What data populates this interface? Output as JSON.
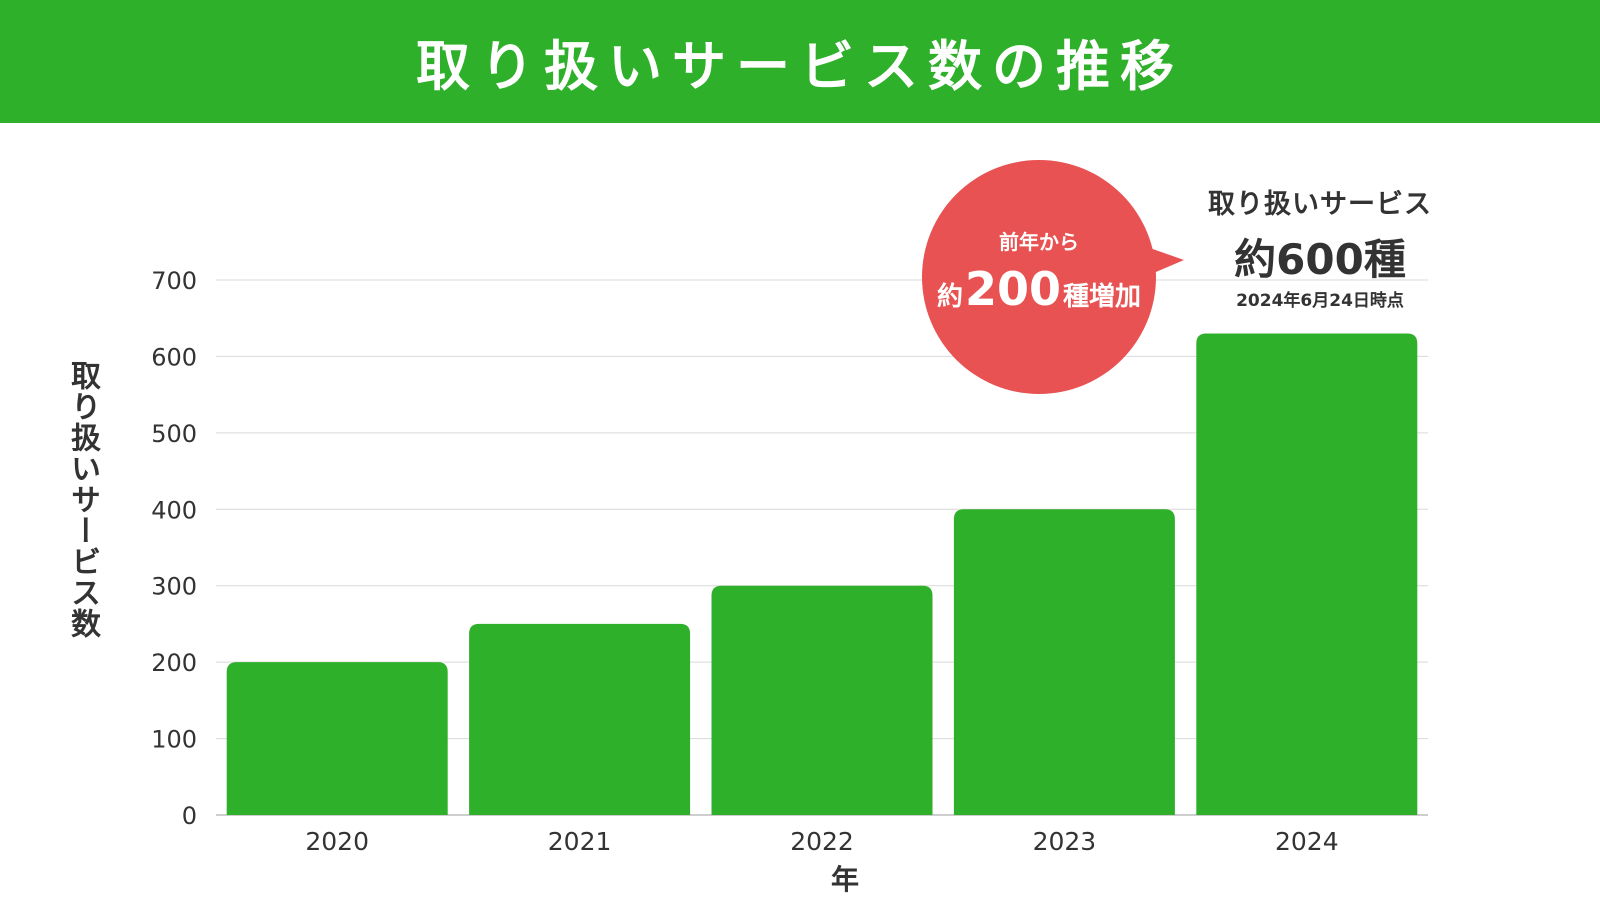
{
  "header": {
    "title": "取り扱いサービス数の推移"
  },
  "colors": {
    "header_bg": "#2eb02a",
    "bar": "#2eb02a",
    "bubble": "#e85252",
    "grid": "#d9d9d9",
    "text": "#333333"
  },
  "bubble": {
    "line1": "前年から",
    "line2_prefix": "約",
    "line2_value": "200",
    "line2_suffix": "種増加"
  },
  "callout": {
    "title": "取り扱いサービス",
    "value": "約600種",
    "date": "2024年6月24日時点"
  },
  "chart_data": {
    "type": "bar",
    "categories": [
      "2020",
      "2021",
      "2022",
      "2023",
      "2024"
    ],
    "values": [
      200,
      250,
      300,
      400,
      630
    ],
    "xlabel": "年",
    "ylabel": "取り扱いサービス数",
    "ylim": [
      0,
      700
    ],
    "yticks": [
      0,
      100,
      200,
      300,
      400,
      500,
      600,
      700
    ],
    "grid": true
  }
}
